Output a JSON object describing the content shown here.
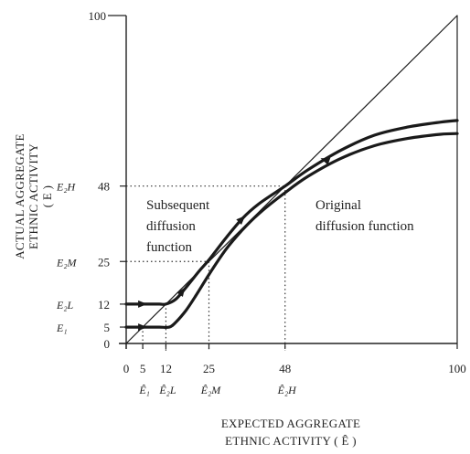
{
  "chart_data": {
    "type": "line",
    "xlabel_lines": [
      "EXPECTED AGGREGATE",
      "ETHNIC ACTIVITY ( Ê )"
    ],
    "ylabel_lines": [
      "ACTUAL AGGREGATE",
      "ETHNIC ACTIVITY",
      "( E )"
    ],
    "xlim": [
      0,
      100
    ],
    "ylim": [
      0,
      100
    ],
    "x_ticks": [
      {
        "value": 0,
        "label": "0"
      },
      {
        "value": 5,
        "label": "5"
      },
      {
        "value": 12,
        "label": "12"
      },
      {
        "value": 25,
        "label": "25"
      },
      {
        "value": 48,
        "label": "48"
      },
      {
        "value": 100,
        "label": "100"
      }
    ],
    "x_symbols": [
      {
        "value": 5,
        "label": "Ê₁"
      },
      {
        "value": 12,
        "label": "Ê₂L"
      },
      {
        "value": 25,
        "label": "Ê₂M"
      },
      {
        "value": 48,
        "label": "Ê₂H"
      }
    ],
    "y_ticks": [
      {
        "value": 0,
        "label": "0"
      },
      {
        "value": 5,
        "label": "5"
      },
      {
        "value": 12,
        "label": "12"
      },
      {
        "value": 25,
        "label": "25"
      },
      {
        "value": 48,
        "label": "48"
      },
      {
        "value": 100,
        "label": "100"
      }
    ],
    "y_symbols": [
      {
        "value": 5,
        "label": "E₁"
      },
      {
        "value": 12,
        "label": "E₂L"
      },
      {
        "value": 25,
        "label": "E₂M"
      },
      {
        "value": 48,
        "label": "E₂H"
      }
    ],
    "series": [
      {
        "name": "Original diffusion function",
        "x": [
          0,
          5,
          10,
          13,
          15,
          18,
          21,
          25,
          30,
          35,
          40,
          48,
          55,
          65,
          75,
          85,
          95,
          100
        ],
        "y": [
          5,
          5,
          5,
          5,
          6.5,
          10,
          14.5,
          21,
          28.5,
          34.5,
          39.5,
          46,
          51,
          56.5,
          60.3,
          62.5,
          63.8,
          64
        ]
      },
      {
        "name": "Subsequent diffusion function",
        "x": [
          0,
          5,
          10,
          12,
          15,
          18,
          22,
          25,
          30,
          35,
          40,
          48,
          55,
          65,
          75,
          85,
          95,
          100
        ],
        "y": [
          12,
          12,
          12,
          12,
          13.5,
          17,
          22,
          25.5,
          32,
          38,
          42.5,
          48,
          53,
          59,
          63.5,
          66,
          67.5,
          68
        ]
      },
      {
        "name": "45-degree line",
        "x": [
          0,
          100
        ],
        "y": [
          0,
          100
        ]
      }
    ],
    "annotations": [
      {
        "text_lines": [
          "Subsequent",
          "diffusion",
          "function"
        ]
      },
      {
        "text_lines": [
          "Original",
          "diffusion function"
        ]
      }
    ],
    "guides": [
      {
        "x": 5,
        "y": 5
      },
      {
        "x": 12,
        "y": 12
      },
      {
        "x": 25,
        "y": 25
      },
      {
        "x": 48,
        "y": 48
      }
    ]
  }
}
